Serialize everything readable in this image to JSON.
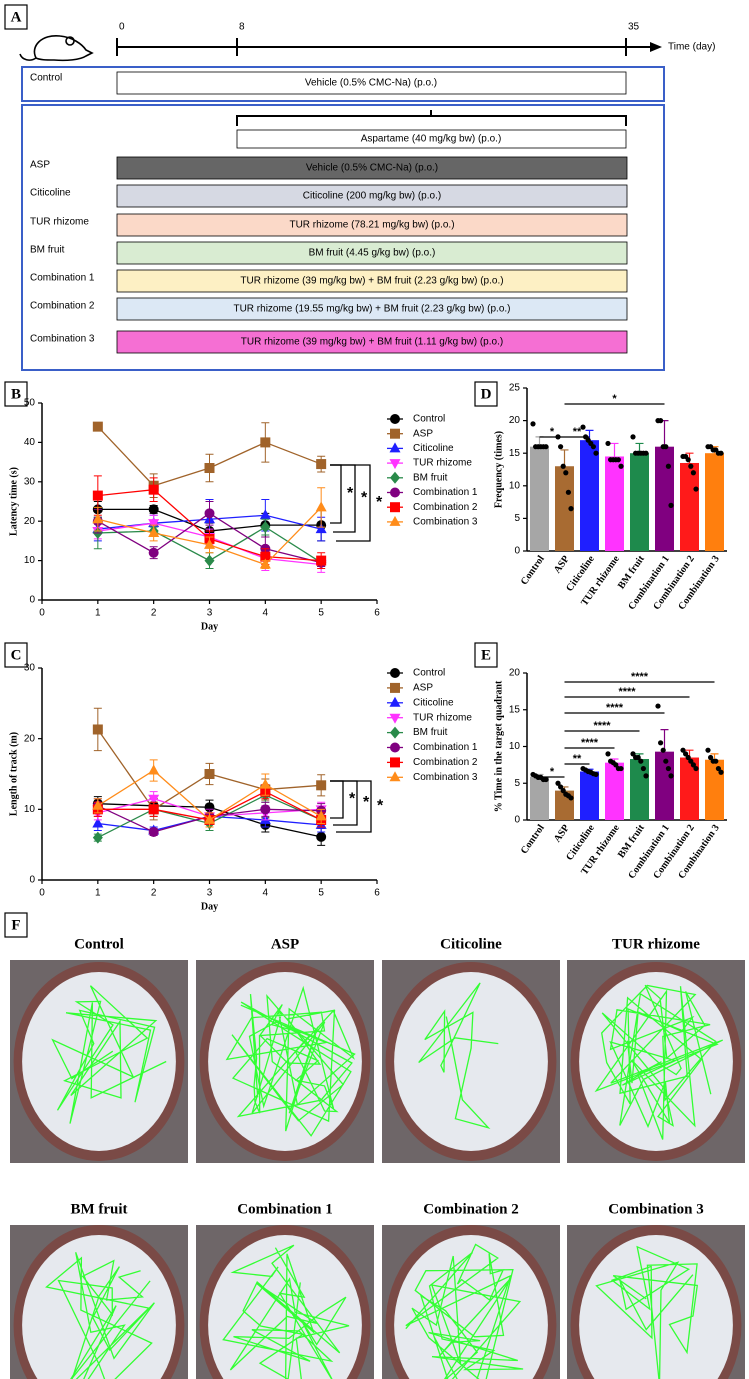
{
  "panel_a": {
    "label": "A",
    "timeline": {
      "ticks": [
        "0",
        "8",
        "35"
      ],
      "axis_label": "Time (day)"
    },
    "control": {
      "name": "Control",
      "treatment": "Vehicle (0.5% CMC-Na) (p.o.)"
    },
    "induction": "Aspartame (40 mg/kg bw)  (p.o.)",
    "groups": [
      {
        "name": "ASP",
        "treatment": "Vehicle (0.5% CMC-Na) (p.o.)"
      },
      {
        "name": "Citicoline",
        "treatment": "Citicoline (200 mg/kg bw) (p.o.)"
      },
      {
        "name": "TUR rhizome",
        "treatment": "TUR rhizome (78.21 mg/kg bw) (p.o.)"
      },
      {
        "name": "BM fruit",
        "treatment": "BM fruit (4.45 g/kg bw) (p.o.)"
      },
      {
        "name": "Combination 1",
        "treatment": "TUR rhizome (39 mg/kg bw) + BM fruit (2.23 g/kg bw) (p.o.)"
      },
      {
        "name": "Combination 2",
        "treatment": "TUR rhizome (19.55 mg/kg bw) + BM fruit (2.23 g/kg bw) (p.o.)"
      },
      {
        "name": "Combination 3",
        "treatment": "TUR rhizome (39 mg/kg bw) + BM fruit (1.11 g/kg bw) (p.o.)"
      }
    ]
  },
  "chart_data": [
    {
      "type": "line",
      "panel_label": "B",
      "x_label": "Day",
      "y_label": "Latency time (s)",
      "x": [
        1,
        2,
        3,
        4,
        5
      ],
      "xlim": [
        0,
        6
      ],
      "xticks": [
        0,
        1,
        2,
        3,
        4,
        5,
        6
      ],
      "ylim": [
        0,
        50
      ],
      "yticks": [
        0,
        10,
        20,
        30,
        40,
        50
      ],
      "series": [
        {
          "name": "Control",
          "color": "#000000",
          "marker": "circle",
          "values": [
            23,
            23,
            17.5,
            19,
            19
          ],
          "errors": [
            2,
            1,
            2,
            3,
            4
          ]
        },
        {
          "name": "ASP",
          "color": "#a0632a",
          "marker": "square",
          "values": [
            44,
            29,
            33.5,
            40,
            34.5
          ],
          "errors": [
            0.5,
            3,
            3.5,
            5,
            2
          ]
        },
        {
          "name": "Citicoline",
          "color": "#1f1fff",
          "marker": "triangle-up",
          "values": [
            18,
            19.5,
            20.5,
            21.5,
            18
          ],
          "errors": [
            3,
            2,
            5,
            4,
            3
          ]
        },
        {
          "name": "TUR rhizome",
          "color": "#ff33ff",
          "marker": "triangle-down",
          "values": [
            17.5,
            19.5,
            16,
            10.5,
            9
          ],
          "errors": [
            2,
            2,
            2,
            3,
            2
          ]
        },
        {
          "name": "BM fruit",
          "color": "#2a8a4a",
          "marker": "diamond",
          "values": [
            17,
            17.5,
            10,
            18.5,
            9.5
          ],
          "errors": [
            4,
            1,
            2,
            2,
            1
          ]
        },
        {
          "name": "Combination 1",
          "color": "#800080",
          "marker": "circle",
          "values": [
            20,
            12,
            22,
            13,
            9.5
          ],
          "errors": [
            3,
            1.5,
            3,
            3,
            1
          ]
        },
        {
          "name": "Combination 2",
          "color": "#ff0000",
          "marker": "square",
          "values": [
            26.5,
            28,
            15.5,
            11,
            10
          ],
          "errors": [
            5,
            3,
            2,
            2,
            2
          ]
        },
        {
          "name": "Combination 3",
          "color": "#ff8c1a",
          "marker": "triangle-up",
          "values": [
            20.5,
            17,
            14,
            9,
            23.5
          ],
          "errors": [
            3,
            2,
            2,
            1,
            5
          ]
        }
      ],
      "annotations": [
        "*",
        "*",
        "*"
      ]
    },
    {
      "type": "line",
      "panel_label": "C",
      "x_label": "Day",
      "y_label": "Length of track (m)",
      "x": [
        1,
        2,
        3,
        4,
        5
      ],
      "xlim": [
        0,
        6
      ],
      "xticks": [
        0,
        1,
        2,
        3,
        4,
        5,
        6
      ],
      "ylim": [
        0,
        30
      ],
      "yticks": [
        0,
        10,
        20,
        30
      ],
      "series": [
        {
          "name": "Control",
          "color": "#000000",
          "marker": "circle",
          "values": [
            10.8,
            10.5,
            10.3,
            7.8,
            6.1
          ],
          "errors": [
            1,
            1,
            1,
            1,
            1.2
          ]
        },
        {
          "name": "ASP",
          "color": "#a0632a",
          "marker": "square",
          "values": [
            21.3,
            10,
            15,
            12.8,
            13.4
          ],
          "errors": [
            3,
            1.5,
            1.5,
            1.5,
            1.5
          ]
        },
        {
          "name": "Citicoline",
          "color": "#1f1fff",
          "marker": "triangle-up",
          "values": [
            8,
            7,
            9,
            8.5,
            7.8
          ],
          "errors": [
            1,
            0.5,
            1,
            1,
            1
          ]
        },
        {
          "name": "TUR rhizome",
          "color": "#ff33ff",
          "marker": "triangle-down",
          "values": [
            9.5,
            11.5,
            9,
            9.5,
            10
          ],
          "errors": [
            1,
            1,
            1,
            1,
            1
          ]
        },
        {
          "name": "BM fruit",
          "color": "#2a8a4a",
          "marker": "diamond",
          "values": [
            6,
            10,
            8,
            12,
            8.5
          ],
          "errors": [
            0.5,
            1,
            1,
            1,
            1
          ]
        },
        {
          "name": "Combination 1",
          "color": "#800080",
          "marker": "circle",
          "values": [
            10.5,
            6.8,
            9,
            10,
            9.8
          ],
          "errors": [
            1,
            0.5,
            1,
            1,
            1
          ]
        },
        {
          "name": "Combination 2",
          "color": "#ff0000",
          "marker": "square",
          "values": [
            10,
            10,
            8.5,
            12.5,
            8.5
          ],
          "errors": [
            1,
            1,
            1,
            1,
            1
          ]
        },
        {
          "name": "Combination 3",
          "color": "#ff8c1a",
          "marker": "triangle-up",
          "values": [
            10.5,
            15.5,
            8.5,
            13.5,
            9
          ],
          "errors": [
            1,
            1.5,
            1,
            1.5,
            1
          ]
        }
      ],
      "annotations": [
        "*",
        "*",
        "*"
      ]
    },
    {
      "type": "bar",
      "panel_label": "D",
      "y_label": "Frequency (times)",
      "categories": [
        "Control",
        "ASP",
        "Citicoline",
        "TUR rhizome",
        "BM fruit",
        "Combination 1",
        "Combination 2",
        "Combination 3"
      ],
      "colors": [
        "#a6a6a6",
        "#a86b32",
        "#1f1fff",
        "#ff33ff",
        "#1e8a4c",
        "#800080",
        "#ff1a1a",
        "#ff7f0e"
      ],
      "values": [
        16,
        13,
        17,
        14.5,
        15,
        16,
        13.5,
        15
      ],
      "errors": [
        1.5,
        2.5,
        1.5,
        2,
        1.5,
        4,
        1.5,
        1
      ],
      "points": [
        [
          19.5,
          16,
          16,
          16,
          16,
          16
        ],
        [
          17.5,
          16,
          13,
          12,
          9,
          6.5
        ],
        [
          19,
          17.5,
          17,
          16.5,
          16,
          15
        ],
        [
          16.5,
          14,
          14,
          14,
          14,
          13
        ],
        [
          17.5,
          15,
          15,
          15,
          15,
          15
        ],
        [
          20,
          20,
          16,
          16,
          13,
          7
        ],
        [
          14.5,
          14.5,
          14,
          13,
          12,
          9.5
        ],
        [
          16,
          16,
          15.5,
          15.5,
          15,
          15
        ]
      ],
      "ylim": [
        0,
        25
      ],
      "yticks": [
        0,
        5,
        10,
        15,
        20,
        25
      ],
      "annotations": [
        "*",
        "**",
        "*"
      ]
    },
    {
      "type": "bar",
      "panel_label": "E",
      "y_label": "% Time in the target quadrant",
      "categories": [
        "Control",
        "ASP",
        "Citicoline",
        "TUR rhizome",
        "BM fruit",
        "Combination 1",
        "Combination 2",
        "Combination 3"
      ],
      "colors": [
        "#a6a6a6",
        "#a86b32",
        "#1f1fff",
        "#ff33ff",
        "#1e8a4c",
        "#800080",
        "#ff1a1a",
        "#ff7f0e"
      ],
      "values": [
        5.9,
        4,
        6.6,
        7.8,
        8.3,
        9.3,
        8.5,
        8.2
      ],
      "errors": [
        0.3,
        0.5,
        0.3,
        0.5,
        0.7,
        3,
        1,
        0.8
      ],
      "points": [
        [
          6.2,
          6,
          5.8,
          5.8,
          5.5,
          5.5
        ],
        [
          5,
          4.5,
          4,
          3.5,
          3.3,
          3
        ],
        [
          7,
          6.8,
          6.6,
          6.5,
          6.3,
          6.2
        ],
        [
          9,
          8,
          7.8,
          7.5,
          7,
          7
        ],
        [
          9,
          8.5,
          8.5,
          8,
          7,
          6
        ],
        [
          15.5,
          10.5,
          9.5,
          8,
          7,
          6
        ],
        [
          9.5,
          9,
          8.5,
          8,
          7.5,
          7
        ],
        [
          9.5,
          8.5,
          8,
          8,
          7,
          6.5
        ]
      ],
      "ylim": [
        0,
        20
      ],
      "yticks": [
        0,
        5,
        10,
        15,
        20
      ],
      "annotations": [
        "*",
        "**",
        "****",
        "****",
        "****",
        "****",
        "****"
      ]
    }
  ],
  "panel_f": {
    "label": "F",
    "titles": [
      "Control",
      "ASP",
      "Citicoline",
      "TUR rhizome",
      "BM fruit",
      "Combination 1",
      "Combination 2",
      "Combination 3"
    ]
  }
}
